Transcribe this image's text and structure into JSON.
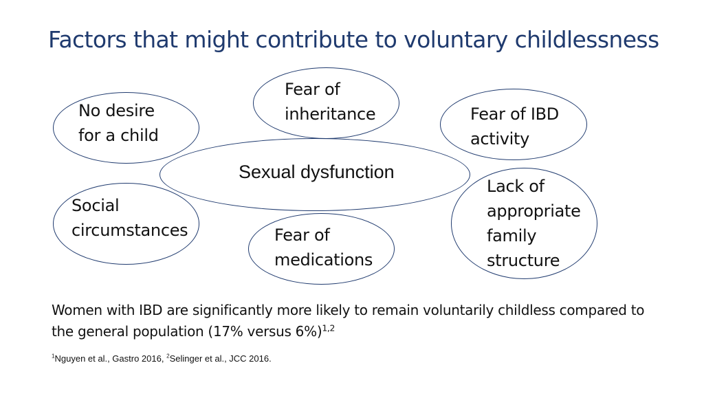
{
  "slide": {
    "title": "Factors that might contribute to voluntary childlessness"
  },
  "diagram": {
    "center": "Sexual dysfunction",
    "factors": {
      "no_desire": [
        "No desire",
        "for a child"
      ],
      "inheritance": [
        "Fear of",
        "inheritance"
      ],
      "ibd_activity": [
        "Fear of IBD",
        "activity"
      ],
      "social": [
        "Social",
        "circumstances"
      ],
      "medications": [
        "Fear of",
        "medications"
      ],
      "family": [
        "Lack of",
        "appropriate",
        "family",
        "structure"
      ]
    }
  },
  "statement": {
    "text": "Women with IBD are significantly more likely to remain voluntarily childless compared to the general population (17% versus 6%)",
    "citation_marks": "1,2"
  },
  "references": {
    "ref1_mark": "1",
    "ref1_text": "Nguyen et al., Gastro 2016, ",
    "ref2_mark": "2",
    "ref2_text": "Selinger et al., JCC 2016."
  }
}
